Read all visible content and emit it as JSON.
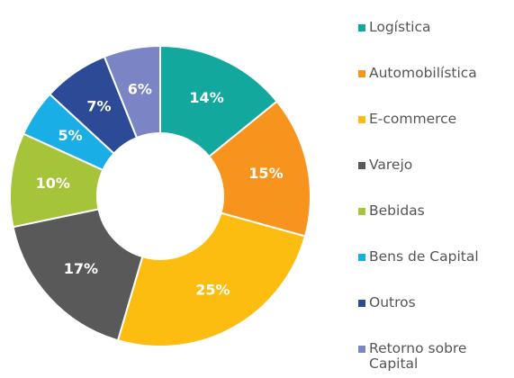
{
  "chart_data": {
    "type": "pie",
    "categories": [
      "Logística",
      "Automobilística",
      "E-commerce",
      "Varejo",
      "Bebidas",
      "Bens de Capital",
      "Outros",
      "Retorno sobre Capital"
    ],
    "values": [
      14,
      15,
      25,
      17,
      10,
      5,
      7,
      6
    ],
    "value_labels": [
      "14%",
      "15%",
      "25%",
      "17%",
      "10%",
      "5%",
      "7%",
      "6%"
    ],
    "colors": [
      "#13a89e",
      "#f7941d",
      "#fdbd10",
      "#595959",
      "#a5c43a",
      "#1aaee6",
      "#2c4a96",
      "#7b84c4"
    ],
    "legend": "right"
  }
}
